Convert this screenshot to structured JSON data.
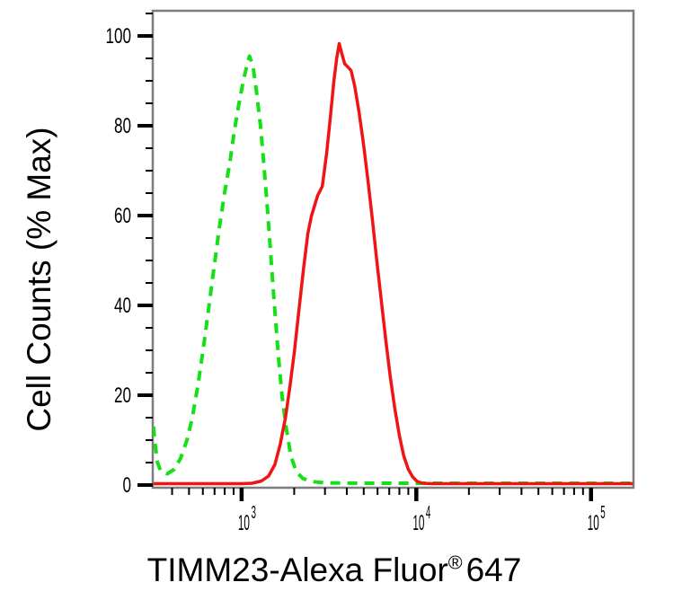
{
  "figure": {
    "background": "#ffffff",
    "frame_color": "#7d7d7d",
    "tick_color": "#000000",
    "label_color": "#000000"
  },
  "axis_label_parts": {
    "main": "TIMM23-Alexa Fluor",
    "registered": "®",
    "suffix": "647"
  },
  "chart_data": {
    "type": "line",
    "subtype": "flow-cytometry-histogram",
    "title": "",
    "xlabel": "TIMM23-Alexa Fluor® 647",
    "ylabel": "Cell Counts (% Max)",
    "x_scale": "log",
    "x_range": [
      310,
      175000
    ],
    "y_range_display": [
      -0.6,
      105.6
    ],
    "grid": false,
    "legend": "none",
    "y_major_ticks": [
      {
        "value": 0,
        "label": "0"
      },
      {
        "value": 20,
        "label": "20"
      },
      {
        "value": 40,
        "label": "40"
      },
      {
        "value": 60,
        "label": "60"
      },
      {
        "value": 80,
        "label": "80"
      },
      {
        "value": 100,
        "label": "100"
      }
    ],
    "y_minor_ticks": [
      5,
      10,
      15,
      25,
      30,
      35,
      45,
      50,
      55,
      65,
      70,
      75,
      85,
      90,
      95,
      105
    ],
    "x_major_ticks": [
      {
        "value": 1000,
        "base": "10",
        "exp": "3"
      },
      {
        "value": 10000,
        "base": "10",
        "exp": "4"
      },
      {
        "value": 100000,
        "base": "10",
        "exp": "5"
      }
    ],
    "x_minor_ticks": [
      400,
      500,
      600,
      700,
      800,
      900,
      2000,
      3000,
      4000,
      5000,
      6000,
      7000,
      8000,
      9000,
      20000,
      30000,
      40000,
      50000,
      60000,
      70000,
      80000,
      90000
    ],
    "series": [
      {
        "name": "green dashed curve",
        "style": "dashed",
        "color": "#15e015",
        "peak": {
          "x": 1110,
          "y": 95.5
        },
        "points": [
          [
            313,
            13
          ],
          [
            320,
            9
          ],
          [
            330,
            5
          ],
          [
            345,
            3
          ],
          [
            375,
            2.5
          ],
          [
            412,
            3.5
          ],
          [
            448,
            6
          ],
          [
            487,
            10
          ],
          [
            522,
            15
          ],
          [
            561,
            22
          ],
          [
            602,
            30
          ],
          [
            646,
            39
          ],
          [
            693,
            48
          ],
          [
            744,
            57
          ],
          [
            799,
            65
          ],
          [
            857,
            72
          ],
          [
            910,
            79
          ],
          [
            966,
            85
          ],
          [
            1023,
            90
          ],
          [
            1074,
            93.5
          ],
          [
            1110,
            95.5
          ],
          [
            1165,
            93
          ],
          [
            1222,
            87
          ],
          [
            1282,
            80
          ],
          [
            1343,
            71
          ],
          [
            1409,
            61
          ],
          [
            1476,
            50
          ],
          [
            1549,
            39
          ],
          [
            1622,
            29
          ],
          [
            1702,
            20
          ],
          [
            1803,
            12.5
          ],
          [
            1914,
            6.5
          ],
          [
            2055,
            3
          ],
          [
            2234,
            1.5
          ],
          [
            2480,
            0.8
          ],
          [
            2960,
            0.5
          ],
          [
            4750,
            0.4
          ],
          [
            15500,
            0.4
          ],
          [
            100000,
            0.4
          ],
          [
            174000,
            0.4
          ]
        ]
      },
      {
        "name": "red solid curve",
        "style": "solid",
        "color": "#f01414",
        "peak": {
          "x": 3620,
          "y": 98.3
        },
        "points": [
          [
            313,
            0.3
          ],
          [
            1000,
            0.3
          ],
          [
            1150,
            0.4
          ],
          [
            1300,
            0.9
          ],
          [
            1426,
            2
          ],
          [
            1549,
            4.5
          ],
          [
            1663,
            9
          ],
          [
            1782,
            15
          ],
          [
            1892,
            22
          ],
          [
            2009,
            30
          ],
          [
            2128,
            39
          ],
          [
            2259,
            48
          ],
          [
            2394,
            56
          ],
          [
            2512,
            60
          ],
          [
            2728,
            64.5
          ],
          [
            2897,
            66.5
          ],
          [
            3069,
            74
          ],
          [
            3221,
            82
          ],
          [
            3373,
            90
          ],
          [
            3499,
            95
          ],
          [
            3620,
            98.3
          ],
          [
            3750,
            96
          ],
          [
            3890,
            93.8
          ],
          [
            4030,
            93.2
          ],
          [
            4230,
            92.3
          ],
          [
            4430,
            89
          ],
          [
            4700,
            83
          ],
          [
            4980,
            76
          ],
          [
            5280,
            68
          ],
          [
            5610,
            59
          ],
          [
            5940,
            50
          ],
          [
            6310,
            41
          ],
          [
            6700,
            32
          ],
          [
            7100,
            24
          ],
          [
            7530,
            17
          ],
          [
            8000,
            11
          ],
          [
            8470,
            6.5
          ],
          [
            9000,
            3.5
          ],
          [
            9530,
            1.8
          ],
          [
            10100,
            0.8
          ],
          [
            10860,
            0.4
          ],
          [
            12200,
            0.3
          ],
          [
            174000,
            0.3
          ]
        ]
      }
    ]
  }
}
